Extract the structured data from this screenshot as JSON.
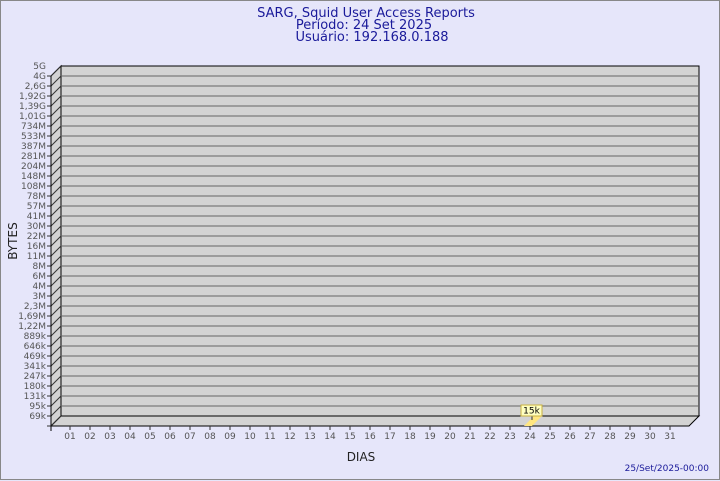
{
  "chart_data": {
    "type": "bar",
    "title": [
      "SARG, Squid User Access Reports",
      "Período: 24 Set 2025",
      "Usuário: 192.168.0.188"
    ],
    "xlabel": "DIAS",
    "ylabel": "BYTES",
    "y_scale": "log",
    "y_ticks": [
      "5G",
      "4G",
      "2,6G",
      "1,92G",
      "1,39G",
      "1,01G",
      "734M",
      "533M",
      "387M",
      "281M",
      "204M",
      "148M",
      "108M",
      "78M",
      "57M",
      "41M",
      "30M",
      "22M",
      "16M",
      "11M",
      "8M",
      "6M",
      "4M",
      "3M",
      "2,3M",
      "1,69M",
      "1,22M",
      "889k",
      "646k",
      "469k",
      "341k",
      "247k",
      "180k",
      "131k",
      "95k",
      "69k"
    ],
    "categories": [
      "01",
      "02",
      "03",
      "04",
      "05",
      "06",
      "07",
      "08",
      "09",
      "10",
      "11",
      "12",
      "13",
      "14",
      "15",
      "16",
      "17",
      "18",
      "19",
      "20",
      "21",
      "22",
      "23",
      "24",
      "25",
      "26",
      "27",
      "28",
      "29",
      "30",
      "31"
    ],
    "values": [
      null,
      null,
      null,
      null,
      null,
      null,
      null,
      null,
      null,
      null,
      null,
      null,
      null,
      null,
      null,
      null,
      null,
      null,
      null,
      null,
      null,
      null,
      null,
      15000,
      null,
      null,
      null,
      null,
      null,
      null,
      null
    ],
    "data_labels": {
      "24": "15k"
    },
    "grid": true,
    "colors": {
      "background": "#e6e6fa",
      "plot": "#d3d3d3",
      "bar": "#ffe680",
      "label_bg": "#ffffc0",
      "title": "#1a1a9a"
    }
  },
  "footer": "25/Set/2025-00:00"
}
